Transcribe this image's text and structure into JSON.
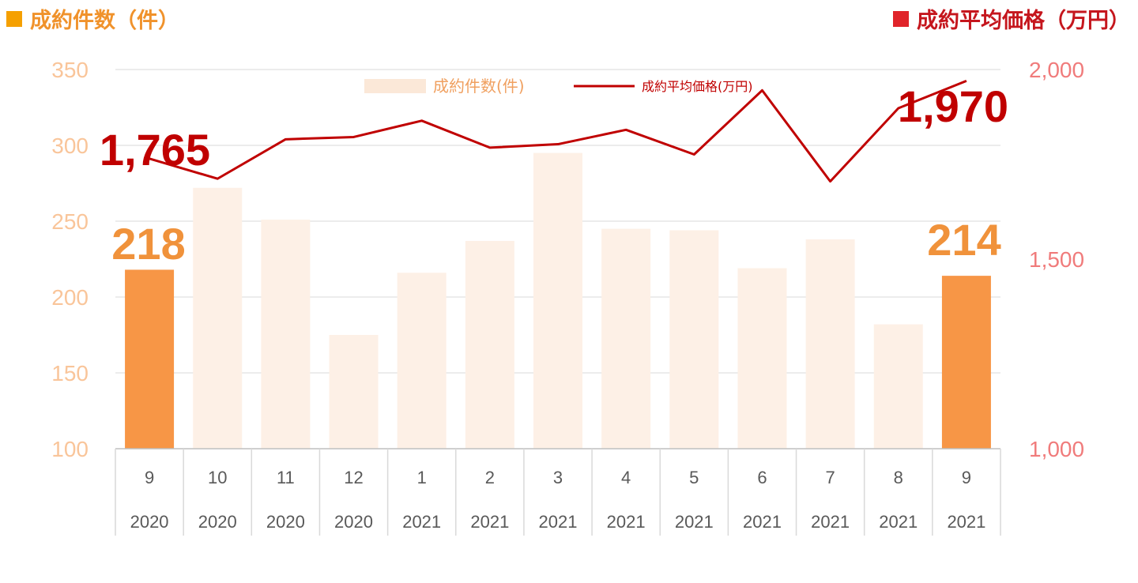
{
  "header": {
    "left_title": "成約件数（件）",
    "right_title": "成約平均価格（万円）"
  },
  "colors": {
    "bar_highlight": "#f79646",
    "bar_normal": "#fdf0e6",
    "line": "#c00000",
    "left_axis_text": "#f9c59a",
    "right_axis_text": "#f07b7b"
  },
  "chart_data": {
    "type": "bar",
    "categories": [
      {
        "month": "9",
        "year": "2020"
      },
      {
        "month": "10",
        "year": "2020"
      },
      {
        "month": "11",
        "year": "2020"
      },
      {
        "month": "12",
        "year": "2020"
      },
      {
        "month": "1",
        "year": "2021"
      },
      {
        "month": "2",
        "year": "2021"
      },
      {
        "month": "3",
        "year": "2021"
      },
      {
        "month": "4",
        "year": "2021"
      },
      {
        "month": "5",
        "year": "2021"
      },
      {
        "month": "6",
        "year": "2021"
      },
      {
        "month": "7",
        "year": "2021"
      },
      {
        "month": "8",
        "year": "2021"
      },
      {
        "month": "9",
        "year": "2021"
      }
    ],
    "series": [
      {
        "name": "成約件数(件)",
        "type": "bar",
        "axis": "left",
        "values": [
          218,
          272,
          251,
          175,
          216,
          237,
          295,
          245,
          244,
          219,
          238,
          182,
          214
        ],
        "highlight": [
          true,
          false,
          false,
          false,
          false,
          false,
          false,
          false,
          false,
          false,
          false,
          false,
          true
        ]
      },
      {
        "name": "成約平均価格(万円)",
        "type": "line",
        "axis": "right",
        "values": [
          1765,
          1712,
          1816,
          1822,
          1865,
          1794,
          1803,
          1841,
          1776,
          1945,
          1705,
          1898,
          1970
        ]
      }
    ],
    "left_axis": {
      "min": 100,
      "max": 350,
      "ticks": [
        "100",
        "150",
        "200",
        "250",
        "300",
        "350"
      ]
    },
    "right_axis": {
      "min": 1000,
      "max": 2000,
      "ticks": [
        "1,000",
        "1,500",
        "2,000"
      ]
    },
    "annotations": [
      {
        "text": "218",
        "series": 0,
        "index": 0
      },
      {
        "text": "214",
        "series": 0,
        "index": 12
      },
      {
        "text": "1,765",
        "series": 1,
        "index": 0
      },
      {
        "text": "1,970",
        "series": 1,
        "index": 12
      }
    ],
    "legend": {
      "position": "top-center",
      "items": [
        "成約件数(件)",
        "成約平均価格(万円)"
      ]
    },
    "grid": true
  }
}
